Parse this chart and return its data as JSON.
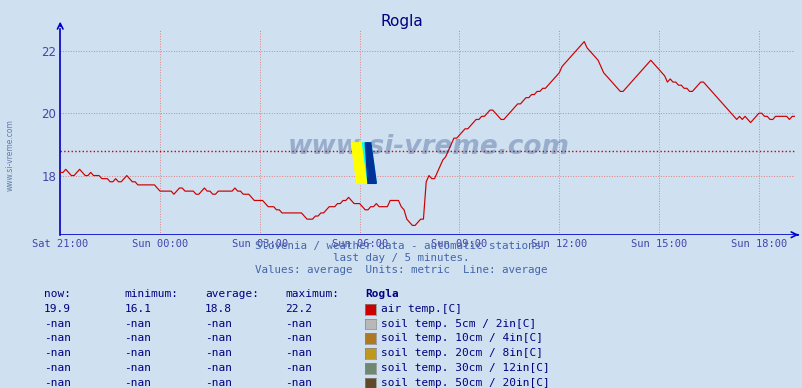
{
  "title": "Rogla",
  "bg_color": "#cfe0f0",
  "plot_bg_color": "#cfe0f0",
  "line_color": "#cc0000",
  "avg_line_color": "#cc0000",
  "avg_value": 18.8,
  "x_tick_labels": [
    "Sat 21:00",
    "Sun 00:00",
    "Sun 03:00",
    "Sun 06:00",
    "Sun 09:00",
    "Sun 12:00",
    "Sun 15:00",
    "Sun 18:00"
  ],
  "x_tick_positions": [
    0,
    36,
    72,
    108,
    144,
    180,
    216,
    252
  ],
  "ylim": [
    16.1,
    22.7
  ],
  "yticks": [
    18,
    20,
    22
  ],
  "grid_color": "#e08080",
  "title_color": "#000080",
  "axis_color": "#0000cc",
  "tick_color": "#4444aa",
  "subtitle1": "Slovenia / weather data - automatic stations.",
  "subtitle2": "last day / 5 minutes.",
  "subtitle3": "Values: average  Units: metric  Line: average",
  "subtitle_color": "#4466aa",
  "watermark": "www.si-vreme.com",
  "watermark_color": "#1a3a7a",
  "legend_items": [
    {
      "label": "air temp.[C]",
      "color": "#cc0000"
    },
    {
      "label": "soil temp. 5cm / 2in[C]",
      "color": "#b8b8b8"
    },
    {
      "label": "soil temp. 10cm / 4in[C]",
      "color": "#b07820"
    },
    {
      "label": "soil temp. 20cm / 8in[C]",
      "color": "#c09820"
    },
    {
      "label": "soil temp. 30cm / 12in[C]",
      "color": "#708870"
    },
    {
      "label": "soil temp. 50cm / 20in[C]",
      "color": "#604828"
    }
  ],
  "data_rows": [
    [
      "19.9",
      "16.1",
      "18.8",
      "22.2"
    ],
    [
      "-nan",
      "-nan",
      "-nan",
      "-nan"
    ],
    [
      "-nan",
      "-nan",
      "-nan",
      "-nan"
    ],
    [
      "-nan",
      "-nan",
      "-nan",
      "-nan"
    ],
    [
      "-nan",
      "-nan",
      "-nan",
      "-nan"
    ],
    [
      "-nan",
      "-nan",
      "-nan",
      "-nan"
    ]
  ],
  "temperature_data": [
    18.1,
    18.1,
    18.2,
    18.1,
    18.0,
    18.0,
    18.1,
    18.2,
    18.1,
    18.0,
    18.0,
    18.1,
    18.0,
    18.0,
    18.0,
    17.9,
    17.9,
    17.9,
    17.8,
    17.8,
    17.9,
    17.8,
    17.8,
    17.9,
    18.0,
    17.9,
    17.8,
    17.8,
    17.7,
    17.7,
    17.7,
    17.7,
    17.7,
    17.7,
    17.7,
    17.6,
    17.5,
    17.5,
    17.5,
    17.5,
    17.5,
    17.4,
    17.5,
    17.6,
    17.6,
    17.5,
    17.5,
    17.5,
    17.5,
    17.4,
    17.4,
    17.5,
    17.6,
    17.5,
    17.5,
    17.4,
    17.4,
    17.5,
    17.5,
    17.5,
    17.5,
    17.5,
    17.5,
    17.6,
    17.5,
    17.5,
    17.4,
    17.4,
    17.4,
    17.3,
    17.2,
    17.2,
    17.2,
    17.2,
    17.1,
    17.0,
    17.0,
    17.0,
    16.9,
    16.9,
    16.8,
    16.8,
    16.8,
    16.8,
    16.8,
    16.8,
    16.8,
    16.8,
    16.7,
    16.6,
    16.6,
    16.6,
    16.7,
    16.7,
    16.8,
    16.8,
    16.9,
    17.0,
    17.0,
    17.0,
    17.1,
    17.1,
    17.2,
    17.2,
    17.3,
    17.2,
    17.1,
    17.1,
    17.1,
    17.0,
    16.9,
    16.9,
    17.0,
    17.0,
    17.1,
    17.0,
    17.0,
    17.0,
    17.0,
    17.2,
    17.2,
    17.2,
    17.2,
    17.0,
    16.9,
    16.6,
    16.5,
    16.4,
    16.4,
    16.5,
    16.6,
    16.6,
    17.8,
    18.0,
    17.9,
    17.9,
    18.1,
    18.3,
    18.5,
    18.6,
    18.8,
    19.0,
    19.2,
    19.2,
    19.3,
    19.4,
    19.5,
    19.5,
    19.6,
    19.7,
    19.8,
    19.8,
    19.9,
    19.9,
    20.0,
    20.1,
    20.1,
    20.0,
    19.9,
    19.8,
    19.8,
    19.9,
    20.0,
    20.1,
    20.2,
    20.3,
    20.3,
    20.4,
    20.5,
    20.5,
    20.6,
    20.6,
    20.7,
    20.7,
    20.8,
    20.8,
    20.9,
    21.0,
    21.1,
    21.2,
    21.3,
    21.5,
    21.6,
    21.7,
    21.8,
    21.9,
    22.0,
    22.1,
    22.2,
    22.3,
    22.1,
    22.0,
    21.9,
    21.8,
    21.7,
    21.5,
    21.3,
    21.2,
    21.1,
    21.0,
    20.9,
    20.8,
    20.7,
    20.7,
    20.8,
    20.9,
    21.0,
    21.1,
    21.2,
    21.3,
    21.4,
    21.5,
    21.6,
    21.7,
    21.6,
    21.5,
    21.4,
    21.3,
    21.2,
    21.0,
    21.1,
    21.0,
    21.0,
    20.9,
    20.9,
    20.8,
    20.8,
    20.7,
    20.7,
    20.8,
    20.9,
    21.0,
    21.0,
    20.9,
    20.8,
    20.7,
    20.6,
    20.5,
    20.4,
    20.3,
    20.2,
    20.1,
    20.0,
    19.9,
    19.8,
    19.9,
    19.8,
    19.9,
    19.8,
    19.7,
    19.8,
    19.9,
    20.0,
    20.0,
    19.9,
    19.9,
    19.8,
    19.8,
    19.9,
    19.9,
    19.9,
    19.9,
    19.9,
    19.8,
    19.9,
    19.9
  ]
}
